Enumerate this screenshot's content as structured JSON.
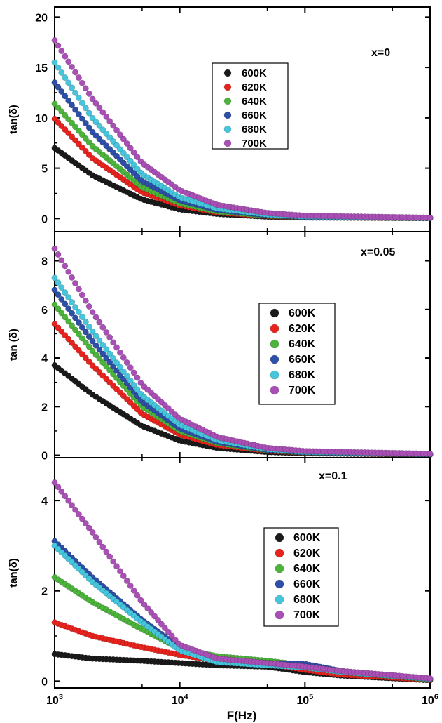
{
  "figure": {
    "x_axis_label": "F(Hz)",
    "x_tick_labels": [
      {
        "base": "10",
        "exp": "3"
      },
      {
        "base": "10",
        "exp": "4"
      },
      {
        "base": "10",
        "exp": "5"
      },
      {
        "base": "10",
        "exp": "6"
      }
    ]
  },
  "colors": {
    "600K": "#1a1a1a",
    "620K": "#e8231e",
    "640K": "#4cb43a",
    "660K": "#2e4fa8",
    "680K": "#45c6dc",
    "700K": "#a94fb6"
  },
  "chart_data": [
    {
      "type": "scatter",
      "annotation": "x=0",
      "ylabel": "tan(δ)",
      "xscale": "log",
      "xlim": [
        1000,
        1000000
      ],
      "ylim": [
        -1.3,
        21
      ],
      "yticks": [
        0,
        5,
        10,
        15,
        20
      ],
      "legend_position": "top-center",
      "series": [
        {
          "name": "600K",
          "x": [
            1000,
            2000,
            5000,
            10000,
            20000,
            50000,
            100000,
            1000000
          ],
          "values": [
            7.0,
            4.3,
            1.9,
            0.9,
            0.45,
            0.18,
            0.1,
            0.05
          ]
        },
        {
          "name": "620K",
          "x": [
            1000,
            2000,
            5000,
            10000,
            20000,
            50000,
            100000,
            1000000
          ],
          "values": [
            9.9,
            6.0,
            2.6,
            1.3,
            0.6,
            0.24,
            0.12,
            0.05
          ]
        },
        {
          "name": "640K",
          "x": [
            1000,
            2000,
            5000,
            10000,
            20000,
            50000,
            100000,
            1000000
          ],
          "values": [
            11.4,
            7.2,
            3.1,
            1.5,
            0.7,
            0.28,
            0.14,
            0.05
          ]
        },
        {
          "name": "660K",
          "x": [
            1000,
            2000,
            5000,
            10000,
            20000,
            50000,
            100000,
            1000000
          ],
          "values": [
            13.5,
            8.6,
            3.7,
            1.8,
            0.85,
            0.33,
            0.16,
            0.05
          ]
        },
        {
          "name": "680K",
          "x": [
            1000,
            2000,
            5000,
            10000,
            20000,
            50000,
            100000,
            1000000
          ],
          "values": [
            15.5,
            10.0,
            4.4,
            2.1,
            1.0,
            0.4,
            0.2,
            0.06
          ]
        },
        {
          "name": "700K",
          "x": [
            1000,
            2000,
            5000,
            10000,
            20000,
            50000,
            100000,
            1000000
          ],
          "values": [
            17.7,
            11.9,
            5.5,
            2.8,
            1.35,
            0.55,
            0.28,
            0.08
          ]
        }
      ]
    },
    {
      "type": "scatter",
      "annotation": "x=0.05",
      "ylabel": "tan (δ)",
      "xscale": "log",
      "xlim": [
        1000,
        1000000
      ],
      "ylim": [
        -0.1,
        9.2
      ],
      "yticks": [
        0,
        2,
        4,
        6,
        8
      ],
      "legend_position": "center-right",
      "series": [
        {
          "name": "600K",
          "x": [
            1000,
            2000,
            5000,
            10000,
            20000,
            50000,
            100000,
            1000000
          ],
          "values": [
            3.7,
            2.5,
            1.2,
            0.6,
            0.3,
            0.13,
            0.08,
            0.03
          ]
        },
        {
          "name": "620K",
          "x": [
            1000,
            2000,
            5000,
            10000,
            20000,
            50000,
            100000,
            1000000
          ],
          "values": [
            5.4,
            3.7,
            1.7,
            0.85,
            0.42,
            0.18,
            0.1,
            0.03
          ]
        },
        {
          "name": "640K",
          "x": [
            1000,
            2000,
            5000,
            10000,
            20000,
            50000,
            100000,
            1000000
          ],
          "values": [
            6.2,
            4.3,
            2.0,
            1.0,
            0.5,
            0.2,
            0.11,
            0.04
          ]
        },
        {
          "name": "660K",
          "x": [
            1000,
            2000,
            5000,
            10000,
            20000,
            50000,
            100000,
            1000000
          ],
          "values": [
            6.8,
            4.7,
            2.2,
            1.1,
            0.55,
            0.22,
            0.12,
            0.04
          ]
        },
        {
          "name": "680K",
          "x": [
            1000,
            2000,
            5000,
            10000,
            20000,
            50000,
            100000,
            1000000
          ],
          "values": [
            7.3,
            5.1,
            2.45,
            1.25,
            0.62,
            0.25,
            0.14,
            0.05
          ]
        },
        {
          "name": "700K",
          "x": [
            1000,
            2000,
            5000,
            10000,
            20000,
            50000,
            100000,
            1000000
          ],
          "values": [
            8.5,
            5.9,
            2.9,
            1.5,
            0.75,
            0.3,
            0.17,
            0.06
          ]
        }
      ]
    },
    {
      "type": "scatter",
      "annotation": "x=0.1",
      "ylabel": "tan(δ)",
      "xscale": "log",
      "xlim": [
        1000,
        1000000
      ],
      "ylim": [
        -0.15,
        4.95
      ],
      "yticks": [
        0,
        2,
        4
      ],
      "legend_position": "center-right",
      "series": [
        {
          "name": "600K",
          "x": [
            1000,
            2000,
            5000,
            10000,
            20000,
            50000,
            100000,
            200000,
            1000000
          ],
          "values": [
            0.6,
            0.5,
            0.45,
            0.4,
            0.35,
            0.32,
            0.2,
            0.12,
            0.02
          ]
        },
        {
          "name": "620K",
          "x": [
            1000,
            2000,
            5000,
            10000,
            20000,
            50000,
            100000,
            200000,
            1000000
          ],
          "values": [
            1.3,
            1.0,
            0.75,
            0.58,
            0.45,
            0.38,
            0.25,
            0.14,
            0.03
          ]
        },
        {
          "name": "640K",
          "x": [
            1000,
            2000,
            5000,
            10000,
            20000,
            50000,
            100000,
            200000,
            1000000
          ],
          "values": [
            2.3,
            1.75,
            1.15,
            0.72,
            0.55,
            0.45,
            0.35,
            0.2,
            0.04
          ]
        },
        {
          "name": "660K",
          "x": [
            1000,
            2000,
            5000,
            10000,
            20000,
            50000,
            100000,
            200000,
            1000000
          ],
          "values": [
            3.1,
            2.3,
            1.35,
            0.75,
            0.48,
            0.4,
            0.38,
            0.22,
            0.05
          ]
        },
        {
          "name": "680K",
          "x": [
            1000,
            2000,
            5000,
            10000,
            20000,
            50000,
            100000,
            200000,
            1000000
          ],
          "values": [
            3.0,
            2.2,
            1.3,
            0.68,
            0.42,
            0.35,
            0.3,
            0.2,
            0.05
          ]
        },
        {
          "name": "700K",
          "x": [
            1000,
            2000,
            5000,
            10000,
            20000,
            50000,
            100000,
            200000,
            1000000
          ],
          "values": [
            4.4,
            3.3,
            1.75,
            0.8,
            0.5,
            0.4,
            0.32,
            0.22,
            0.06
          ]
        }
      ]
    }
  ]
}
